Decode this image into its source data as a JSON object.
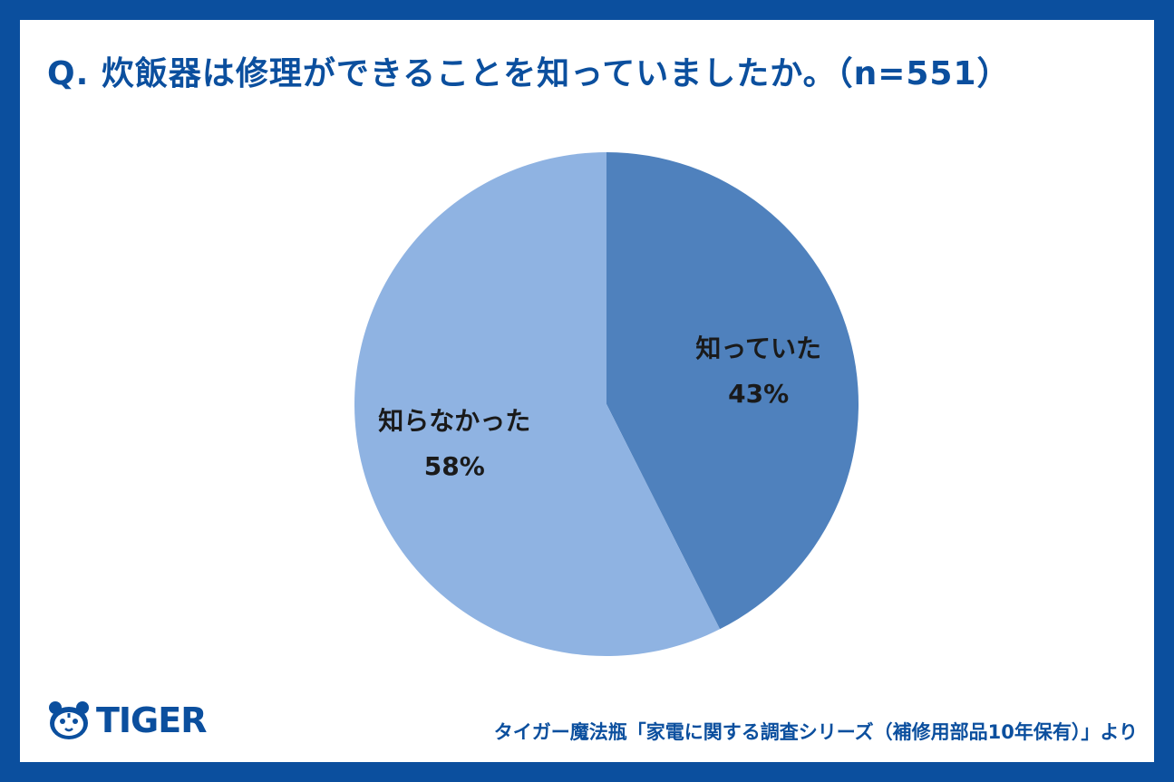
{
  "chart_data": {
    "type": "pie",
    "title": "Q. 炊飯器は修理ができることを知っていましたか。（n=551）",
    "start_angle": "12 o'clock",
    "direction": "clockwise",
    "slices": [
      {
        "label": "知っていた",
        "value": 43,
        "value_label": "43%",
        "color": "#4f81bd"
      },
      {
        "label": "知らなかった",
        "value": 58,
        "value_label": "58%",
        "color": "#8fb3e2"
      }
    ]
  },
  "branding": {
    "logo_text": "TIGER",
    "logo_icon": "tiger-face-icon",
    "brand_color": "#0b4f9e"
  },
  "source": "タイガー魔法瓶「家電に関する調査シリーズ（補修用部品10年保有）」より"
}
